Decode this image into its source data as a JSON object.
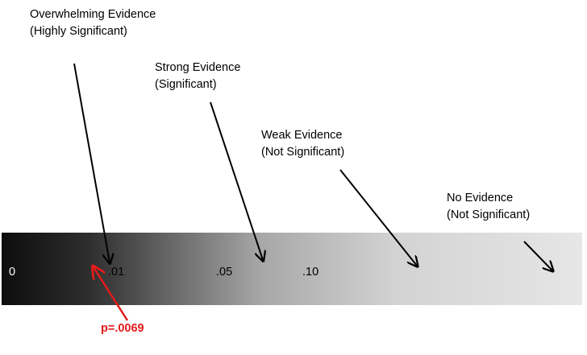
{
  "labels": [
    {
      "line1": "Overwhelming Evidence",
      "line2": "(Highly Significant)"
    },
    {
      "line1": "Strong Evidence",
      "line2": "(Significant)"
    },
    {
      "line1": "Weak Evidence",
      "line2": "(Not Significant)"
    },
    {
      "line1": "No Evidence",
      "line2": "(Not Significant)"
    }
  ],
  "ticks": [
    "0",
    ".01",
    ".05",
    ".10"
  ],
  "pvalue": {
    "text": "p=.0069",
    "color": "#e31b1b"
  },
  "gradient": {
    "start_color": "#0d0d0d",
    "mid_color": "#a8a8a8",
    "end_color": "#e6e6e6"
  }
}
